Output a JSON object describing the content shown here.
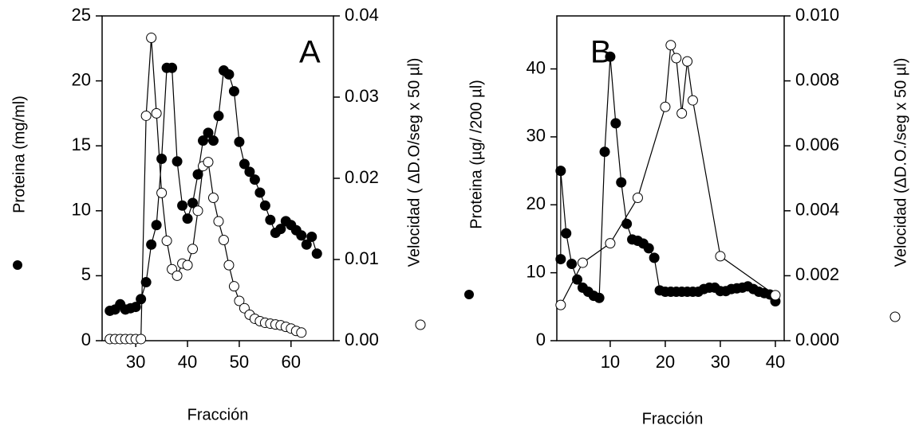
{
  "chart_data": [
    {
      "type": "line",
      "title": "A",
      "xlabel": "Fracción",
      "ylabel": "Proteina (mg/ml)",
      "y2label": "Velocidad ( ΔD.O/seg x 50 µl)",
      "xlim": [
        23.5,
        68.2
      ],
      "xticks": [
        30,
        40,
        50,
        60
      ],
      "ylim": [
        0,
        25
      ],
      "yticks": [
        0,
        5,
        10,
        15,
        20,
        25
      ],
      "y2lim": [
        0,
        0.04
      ],
      "y2ticks": [
        {
          "value": 0,
          "label": "0.00"
        },
        0.01,
        0.02,
        0.03,
        0.04
      ],
      "series": [
        {
          "color": "#000000",
          "marker": "filled",
          "x": [
            25,
            26,
            27,
            28,
            29,
            30,
            31,
            32,
            33,
            34,
            35,
            36,
            37,
            38,
            39,
            40,
            41,
            42,
            43,
            44,
            45,
            46,
            47,
            48,
            49,
            50,
            51,
            52,
            53,
            54,
            55,
            56,
            57,
            58,
            59,
            60,
            61,
            62,
            63,
            64,
            65
          ],
          "values": [
            2.3,
            2.4,
            2.8,
            2.4,
            2.5,
            2.6,
            3.2,
            4.5,
            7.4,
            8.9,
            14.0,
            21.0,
            21.0,
            13.8,
            10.4,
            9.4,
            10.6,
            12.8,
            15.4,
            16.0,
            15.4,
            17.3,
            20.8,
            20.5,
            19.2,
            15.3,
            13.6,
            13.0,
            12.4,
            11.4,
            10.4,
            9.3,
            8.3,
            8.6,
            9.2,
            8.9,
            8.5,
            8.1,
            7.4,
            8.0,
            6.7
          ]
        },
        {
          "color": "#000000",
          "marker": "open",
          "axis": "y2",
          "x": [
            25,
            26,
            27,
            28,
            29,
            30,
            31,
            32,
            33,
            34,
            35,
            36,
            37,
            38,
            39,
            40,
            41,
            42,
            43,
            44,
            45,
            46,
            47,
            48,
            49,
            50,
            51,
            52,
            53,
            54,
            55,
            56,
            57,
            58,
            59,
            60,
            61,
            62
          ],
          "values": [
            0.0002,
            0.0002,
            0.0002,
            0.0002,
            0.0002,
            0.0002,
            0.0002,
            0.0277,
            0.0373,
            0.028,
            0.0182,
            0.0123,
            0.0088,
            0.008,
            0.0095,
            0.0093,
            0.0113,
            0.016,
            0.0215,
            0.022,
            0.0176,
            0.0147,
            0.0124,
            0.0093,
            0.0067,
            0.0049,
            0.004,
            0.0032,
            0.0027,
            0.0024,
            0.0022,
            0.0021,
            0.002,
            0.0019,
            0.0017,
            0.0015,
            0.0012,
            0.001
          ]
        }
      ]
    },
    {
      "type": "line",
      "title": "B",
      "xlabel": "Fracción",
      "ylabel": "Proteina (µg/ /200 µl)",
      "y2label": "Velocidad (ΔD.O./seg x 50 µl)",
      "xlim": [
        0.3,
        41.6
      ],
      "xticks": [
        10,
        20,
        30,
        40
      ],
      "ylim": [
        0,
        47.8
      ],
      "yticks": [
        0,
        10,
        20,
        30,
        40
      ],
      "y2lim": [
        0,
        0.01
      ],
      "y2ticks": [
        {
          "value": 0,
          "label": "0.000"
        },
        0.002,
        0.004,
        0.006,
        0.008,
        {
          "value": 0.01,
          "label": "0.010"
        }
      ],
      "series": [
        {
          "color": "#000000",
          "marker": "filled",
          "x": [
            1,
            1,
            2,
            3,
            4,
            5,
            6,
            7,
            8,
            9,
            10,
            11,
            12,
            13,
            14,
            15,
            16,
            17,
            18,
            19,
            20,
            21,
            22,
            23,
            24,
            25,
            26,
            27,
            28,
            29,
            30,
            31,
            32,
            33,
            34,
            35,
            36,
            37,
            38,
            39,
            40
          ],
          "values": [
            12,
            25,
            15.8,
            11.3,
            9,
            7.8,
            7.2,
            6.6,
            6.3,
            27.8,
            41.8,
            32,
            23.3,
            17.2,
            14.9,
            14.7,
            14.3,
            13.6,
            12.2,
            7.4,
            7.2,
            7.2,
            7.2,
            7.2,
            7.2,
            7.2,
            7.2,
            7.6,
            7.8,
            7.8,
            7.3,
            7.3,
            7.6,
            7.7,
            7.8,
            8.0,
            7.6,
            7.2,
            7.0,
            6.8,
            5.8
          ]
        },
        {
          "color": "#000000",
          "marker": "open",
          "axis": "y2",
          "x": [
            1,
            5,
            10,
            15,
            20,
            21,
            22,
            23,
            24,
            25,
            30,
            40
          ],
          "values": [
            0.0011,
            0.0024,
            0.003,
            0.0044,
            0.0072,
            0.0091,
            0.0087,
            0.007,
            0.0086,
            0.0074,
            0.0026,
            0.0014
          ]
        }
      ]
    }
  ]
}
